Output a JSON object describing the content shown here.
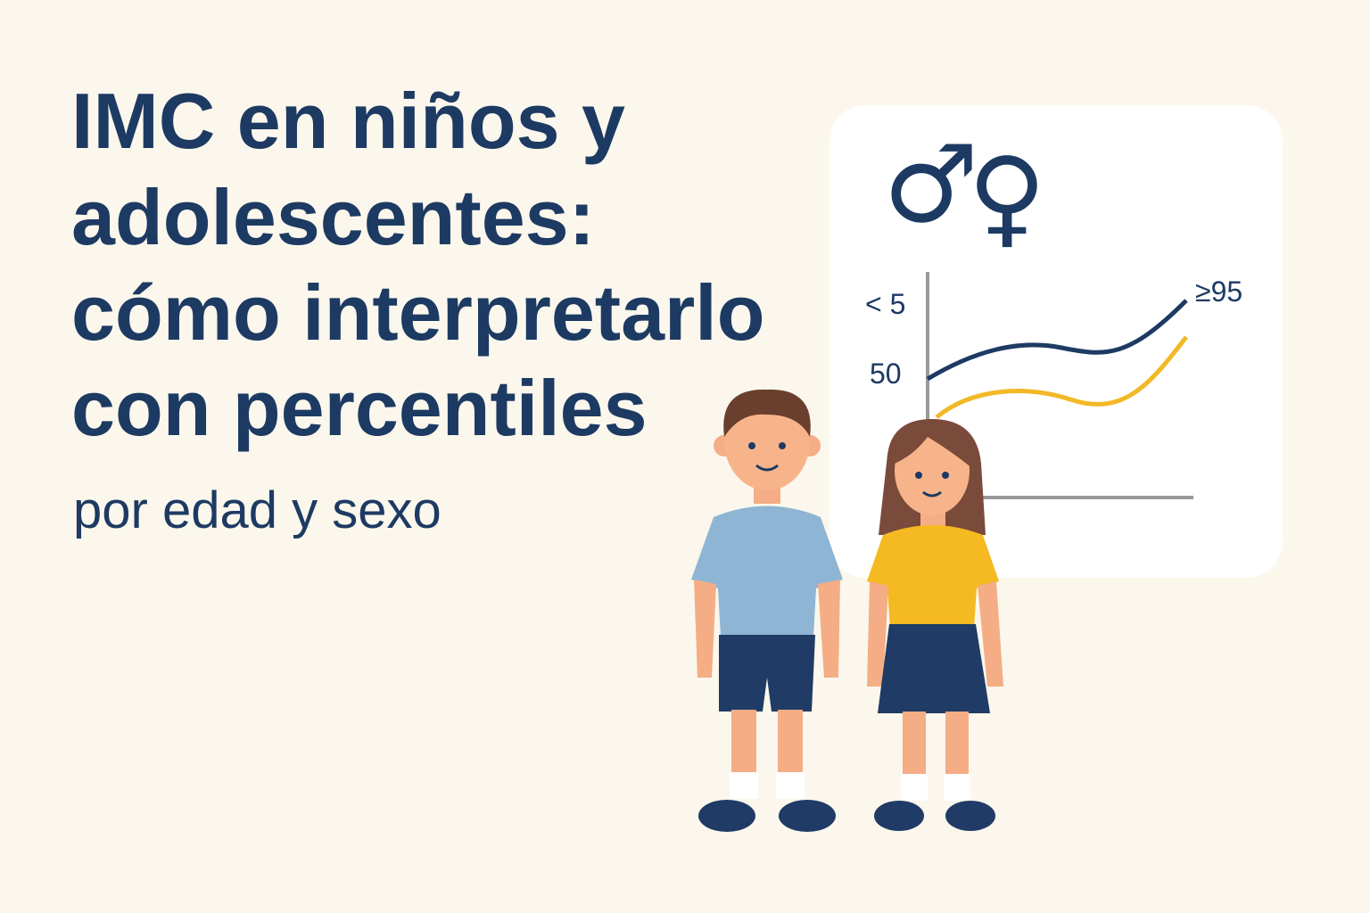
{
  "header": {
    "title_lines": [
      "IMC en niños y",
      "adolescentes:",
      "cómo interpretarlo",
      "con percentiles"
    ],
    "subtitle": "por edad y sexo"
  },
  "card": {
    "symbols": [
      "♂",
      "♀"
    ],
    "labels": [
      "< 5",
      "50",
      "≥95"
    ]
  }
}
